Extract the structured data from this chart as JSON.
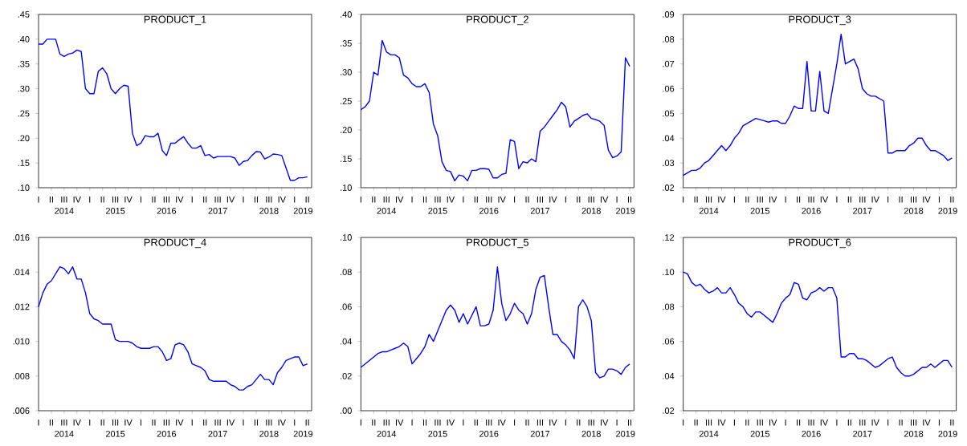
{
  "chart_data": [
    {
      "type": "line",
      "title": "PRODUCT_1",
      "color": "#0000ff",
      "annotations": [
        "2014",
        "2015",
        "2016",
        "2017",
        "2018",
        "2019"
      ],
      "categories": [
        "I",
        null,
        null,
        "II",
        null,
        null,
        "III",
        null,
        null,
        "IV",
        null,
        null,
        "I",
        null,
        null,
        "II",
        null,
        null,
        "III",
        null,
        null,
        "IV",
        null,
        null,
        "I",
        null,
        null,
        "II",
        null,
        null,
        "III",
        null,
        null,
        "IV",
        null,
        null,
        "I",
        null,
        null,
        "II",
        null,
        null,
        "III",
        null,
        null,
        "IV",
        null,
        null,
        "I",
        null,
        null,
        "II",
        null,
        null,
        "III",
        null,
        null,
        "IV",
        null,
        null,
        "I",
        null,
        null,
        "II"
      ],
      "values": [
        0.39,
        0.39,
        0.4,
        0.4,
        0.4,
        0.37,
        0.365,
        0.37,
        0.372,
        0.378,
        0.375,
        0.3,
        0.29,
        0.29,
        0.335,
        0.342,
        0.33,
        0.3,
        0.29,
        0.3,
        0.307,
        0.305,
        0.21,
        0.185,
        0.19,
        0.205,
        0.203,
        0.203,
        0.21,
        0.175,
        0.165,
        0.19,
        0.19,
        0.197,
        0.203,
        0.19,
        0.18,
        0.18,
        0.185,
        0.165,
        0.167,
        0.16,
        0.163,
        0.163,
        0.163,
        0.163,
        0.16,
        0.145,
        0.153,
        0.155,
        0.165,
        0.173,
        0.172,
        0.158,
        0.162,
        0.168,
        0.167,
        0.165,
        0.14,
        0.115,
        0.115,
        0.12,
        0.12,
        0.122
      ],
      "ylim": [
        0.1,
        0.45
      ],
      "yticks": [
        {
          "value": 0.1,
          "label": ".10"
        },
        {
          "value": 0.15,
          "label": ".15"
        },
        {
          "value": 0.2,
          "label": ".20"
        },
        {
          "value": 0.25,
          "label": ".25"
        },
        {
          "value": 0.3,
          "label": ".30"
        },
        {
          "value": 0.35,
          "label": ".35"
        },
        {
          "value": 0.4,
          "label": ".40"
        },
        {
          "value": 0.45,
          "label": ".45"
        }
      ]
    },
    {
      "type": "line",
      "title": "PRODUCT_2",
      "color": "#0000ff",
      "annotations": [
        "2014",
        "2015",
        "2016",
        "2017",
        "2018",
        "2019"
      ],
      "categories": [
        "I",
        null,
        null,
        "II",
        null,
        null,
        "III",
        null,
        null,
        "IV",
        null,
        null,
        "I",
        null,
        null,
        "II",
        null,
        null,
        "III",
        null,
        null,
        "IV",
        null,
        null,
        "I",
        null,
        null,
        "II",
        null,
        null,
        "III",
        null,
        null,
        "IV",
        null,
        null,
        "I",
        null,
        null,
        "II",
        null,
        null,
        "III",
        null,
        null,
        "IV",
        null,
        null,
        "I",
        null,
        null,
        "II",
        null,
        null,
        "III",
        null,
        null,
        "IV",
        null,
        null,
        "I",
        null,
        null,
        "II"
      ],
      "values": [
        0.235,
        0.24,
        0.25,
        0.3,
        0.295,
        0.355,
        0.335,
        0.33,
        0.33,
        0.325,
        0.295,
        0.29,
        0.28,
        0.275,
        0.275,
        0.28,
        0.265,
        0.21,
        0.19,
        0.145,
        0.13,
        0.128,
        0.112,
        0.122,
        0.12,
        0.112,
        0.13,
        0.13,
        0.133,
        0.133,
        0.132,
        0.117,
        0.117,
        0.123,
        0.125,
        0.183,
        0.18,
        0.133,
        0.145,
        0.143,
        0.15,
        0.145,
        0.198,
        0.205,
        0.215,
        0.225,
        0.235,
        0.248,
        0.24,
        0.205,
        0.215,
        0.22,
        0.225,
        0.228,
        0.22,
        0.218,
        0.215,
        0.208,
        0.165,
        0.152,
        0.155,
        0.162,
        0.325,
        0.31
      ],
      "ylim": [
        0.1,
        0.4
      ],
      "yticks": [
        {
          "value": 0.1,
          "label": ".10"
        },
        {
          "value": 0.15,
          "label": ".15"
        },
        {
          "value": 0.2,
          "label": ".20"
        },
        {
          "value": 0.25,
          "label": ".25"
        },
        {
          "value": 0.3,
          "label": ".30"
        },
        {
          "value": 0.35,
          "label": ".35"
        },
        {
          "value": 0.4,
          "label": ".40"
        }
      ]
    },
    {
      "type": "line",
      "title": "PRODUCT_3",
      "color": "#0000ff",
      "annotations": [
        "2014",
        "2015",
        "2016",
        "2017",
        "2018",
        "2019"
      ],
      "categories": [
        "I",
        null,
        null,
        "II",
        null,
        null,
        "III",
        null,
        null,
        "IV",
        null,
        null,
        "I",
        null,
        null,
        "II",
        null,
        null,
        "III",
        null,
        null,
        "IV",
        null,
        null,
        "I",
        null,
        null,
        "II",
        null,
        null,
        "III",
        null,
        null,
        "IV",
        null,
        null,
        "I",
        null,
        null,
        "II",
        null,
        null,
        "III",
        null,
        null,
        "IV",
        null,
        null,
        "I",
        null,
        null,
        "II",
        null,
        null,
        "III",
        null,
        null,
        "IV",
        null,
        null,
        "I",
        null,
        null,
        "II"
      ],
      "values": [
        0.025,
        0.026,
        0.027,
        0.027,
        0.028,
        0.03,
        0.031,
        0.033,
        0.035,
        0.037,
        0.035,
        0.037,
        0.04,
        0.042,
        0.045,
        0.046,
        0.047,
        0.048,
        0.0475,
        0.047,
        0.0465,
        0.047,
        0.047,
        0.046,
        0.046,
        0.049,
        0.053,
        0.052,
        0.052,
        0.071,
        0.051,
        0.051,
        0.067,
        0.051,
        0.05,
        0.06,
        0.07,
        0.082,
        0.07,
        0.071,
        0.072,
        0.068,
        0.06,
        0.058,
        0.057,
        0.057,
        0.056,
        0.055,
        0.034,
        0.034,
        0.035,
        0.035,
        0.035,
        0.037,
        0.038,
        0.04,
        0.04,
        0.037,
        0.035,
        0.035,
        0.034,
        0.033,
        0.031,
        0.032
      ],
      "ylim": [
        0.02,
        0.09
      ],
      "yticks": [
        {
          "value": 0.02,
          "label": ".02"
        },
        {
          "value": 0.03,
          "label": ".03"
        },
        {
          "value": 0.04,
          "label": ".04"
        },
        {
          "value": 0.05,
          "label": ".05"
        },
        {
          "value": 0.06,
          "label": ".06"
        },
        {
          "value": 0.07,
          "label": ".07"
        },
        {
          "value": 0.08,
          "label": ".08"
        },
        {
          "value": 0.09,
          "label": ".09"
        }
      ]
    },
    {
      "type": "line",
      "title": "PRODUCT_4",
      "color": "#0000ff",
      "annotations": [
        "2014",
        "2015",
        "2016",
        "2017",
        "2018",
        "2019"
      ],
      "categories": [
        "I",
        null,
        null,
        "II",
        null,
        null,
        "III",
        null,
        null,
        "IV",
        null,
        null,
        "I",
        null,
        null,
        "II",
        null,
        null,
        "III",
        null,
        null,
        "IV",
        null,
        null,
        "I",
        null,
        null,
        "II",
        null,
        null,
        "III",
        null,
        null,
        "IV",
        null,
        null,
        "I",
        null,
        null,
        "II",
        null,
        null,
        "III",
        null,
        null,
        "IV",
        null,
        null,
        "I",
        null,
        null,
        "II",
        null,
        null,
        "III",
        null,
        null,
        "IV",
        null,
        null,
        "I",
        null,
        null,
        "II"
      ],
      "values": [
        0.012,
        0.0128,
        0.0133,
        0.0135,
        0.0139,
        0.0143,
        0.0142,
        0.0139,
        0.0143,
        0.0136,
        0.0136,
        0.0128,
        0.0116,
        0.0113,
        0.0112,
        0.011,
        0.011,
        0.011,
        0.0101,
        0.01,
        0.01,
        0.01,
        0.0099,
        0.0097,
        0.0096,
        0.0096,
        0.0096,
        0.0097,
        0.0097,
        0.0094,
        0.0089,
        0.009,
        0.0098,
        0.0099,
        0.0098,
        0.0094,
        0.0087,
        0.0086,
        0.0085,
        0.0083,
        0.0078,
        0.0077,
        0.0077,
        0.0077,
        0.0077,
        0.0075,
        0.0074,
        0.0072,
        0.0072,
        0.0074,
        0.0075,
        0.0078,
        0.0081,
        0.0078,
        0.0078,
        0.0075,
        0.0082,
        0.0085,
        0.0089,
        0.009,
        0.0091,
        0.0091,
        0.0086,
        0.0087
      ],
      "ylim": [
        0.006,
        0.016
      ],
      "yticks": [
        {
          "value": 0.006,
          "label": ".006"
        },
        {
          "value": 0.008,
          "label": ".008"
        },
        {
          "value": 0.01,
          "label": ".010"
        },
        {
          "value": 0.012,
          "label": ".012"
        },
        {
          "value": 0.014,
          "label": ".014"
        },
        {
          "value": 0.016,
          "label": ".016"
        }
      ]
    },
    {
      "type": "line",
      "title": "PRODUCT_5",
      "color": "#0000ff",
      "annotations": [
        "2014",
        "2015",
        "2016",
        "2017",
        "2018",
        "2019"
      ],
      "categories": [
        "I",
        null,
        null,
        "II",
        null,
        null,
        "III",
        null,
        null,
        "IV",
        null,
        null,
        "I",
        null,
        null,
        "II",
        null,
        null,
        "III",
        null,
        null,
        "IV",
        null,
        null,
        "I",
        null,
        null,
        "II",
        null,
        null,
        "III",
        null,
        null,
        "IV",
        null,
        null,
        "I",
        null,
        null,
        "II",
        null,
        null,
        "III",
        null,
        null,
        "IV",
        null,
        null,
        "I",
        null,
        null,
        "II",
        null,
        null,
        "III",
        null,
        null,
        "IV",
        null,
        null,
        "I",
        null,
        null,
        "II"
      ],
      "values": [
        0.025,
        0.027,
        0.029,
        0.031,
        0.033,
        0.034,
        0.034,
        0.035,
        0.036,
        0.037,
        0.039,
        0.037,
        0.027,
        0.03,
        0.033,
        0.037,
        0.044,
        0.04,
        0.046,
        0.052,
        0.058,
        0.061,
        0.058,
        0.051,
        0.056,
        0.05,
        0.055,
        0.06,
        0.049,
        0.049,
        0.05,
        0.058,
        0.083,
        0.062,
        0.052,
        0.056,
        0.062,
        0.058,
        0.056,
        0.05,
        0.056,
        0.07,
        0.077,
        0.078,
        0.06,
        0.044,
        0.044,
        0.04,
        0.038,
        0.035,
        0.03,
        0.06,
        0.064,
        0.06,
        0.052,
        0.022,
        0.019,
        0.02,
        0.024,
        0.024,
        0.023,
        0.021,
        0.025,
        0.027
      ],
      "ylim": [
        0.0,
        0.1
      ],
      "yticks": [
        {
          "value": 0.0,
          "label": ".00"
        },
        {
          "value": 0.02,
          "label": ".02"
        },
        {
          "value": 0.04,
          "label": ".04"
        },
        {
          "value": 0.06,
          "label": ".06"
        },
        {
          "value": 0.08,
          "label": ".08"
        },
        {
          "value": 0.1,
          "label": ".10"
        }
      ]
    },
    {
      "type": "line",
      "title": "PRODUCT_6",
      "color": "#0000ff",
      "annotations": [
        "2014",
        "2015",
        "2016",
        "2017",
        "2018",
        "2019"
      ],
      "categories": [
        "I",
        null,
        null,
        "II",
        null,
        null,
        "III",
        null,
        null,
        "IV",
        null,
        null,
        "I",
        null,
        null,
        "II",
        null,
        null,
        "III",
        null,
        null,
        "IV",
        null,
        null,
        "I",
        null,
        null,
        "II",
        null,
        null,
        "III",
        null,
        null,
        "IV",
        null,
        null,
        "I",
        null,
        null,
        "II",
        null,
        null,
        "III",
        null,
        null,
        "IV",
        null,
        null,
        "I",
        null,
        null,
        "II",
        null,
        null,
        "III",
        null,
        null,
        "IV",
        null,
        null,
        "I",
        null,
        null,
        "II"
      ],
      "values": [
        0.1,
        0.099,
        0.094,
        0.092,
        0.093,
        0.09,
        0.088,
        0.089,
        0.091,
        0.088,
        0.088,
        0.091,
        0.087,
        0.082,
        0.08,
        0.076,
        0.074,
        0.077,
        0.077,
        0.075,
        0.073,
        0.071,
        0.076,
        0.082,
        0.085,
        0.087,
        0.094,
        0.093,
        0.085,
        0.084,
        0.088,
        0.089,
        0.091,
        0.089,
        0.091,
        0.091,
        0.085,
        0.051,
        0.051,
        0.053,
        0.053,
        0.05,
        0.05,
        0.049,
        0.047,
        0.045,
        0.046,
        0.048,
        0.05,
        0.051,
        0.045,
        0.042,
        0.04,
        0.04,
        0.041,
        0.043,
        0.045,
        0.045,
        0.047,
        0.045,
        0.047,
        0.049,
        0.049,
        0.045
      ],
      "ylim": [
        0.02,
        0.12
      ],
      "yticks": [
        {
          "value": 0.02,
          "label": ".02"
        },
        {
          "value": 0.04,
          "label": ".04"
        },
        {
          "value": 0.06,
          "label": ".06"
        },
        {
          "value": 0.08,
          "label": ".08"
        },
        {
          "value": 0.1,
          "label": ".10"
        },
        {
          "value": 0.12,
          "label": ".12"
        }
      ]
    }
  ]
}
